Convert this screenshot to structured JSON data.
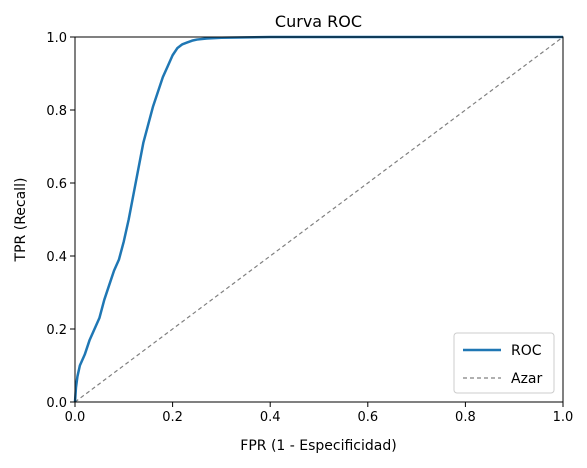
{
  "chart_data": {
    "type": "line",
    "title": "Curva ROC",
    "xlabel": "FPR (1 - Especificidad)",
    "ylabel": "TPR (Recall)",
    "xlim": [
      0,
      1
    ],
    "ylim": [
      0,
      1
    ],
    "xticks": [
      "0.0",
      "0.2",
      "0.4",
      "0.6",
      "0.8",
      "1.0"
    ],
    "yticks": [
      "0.0",
      "0.2",
      "0.4",
      "0.6",
      "0.8",
      "1.0"
    ],
    "grid": false,
    "legend_position": "lower-right",
    "series": [
      {
        "name": "ROC",
        "color": "#1f77b4",
        "style": "solid",
        "x": [
          0.0,
          0.002,
          0.005,
          0.01,
          0.02,
          0.03,
          0.04,
          0.05,
          0.06,
          0.07,
          0.08,
          0.09,
          0.1,
          0.11,
          0.12,
          0.13,
          0.14,
          0.15,
          0.16,
          0.17,
          0.18,
          0.19,
          0.2,
          0.21,
          0.22,
          0.23,
          0.24,
          0.25,
          0.27,
          0.3,
          0.35,
          0.4,
          0.5,
          0.6,
          0.8,
          1.0
        ],
        "y": [
          0.0,
          0.04,
          0.07,
          0.1,
          0.13,
          0.17,
          0.2,
          0.23,
          0.28,
          0.32,
          0.36,
          0.39,
          0.44,
          0.5,
          0.57,
          0.64,
          0.71,
          0.76,
          0.81,
          0.85,
          0.89,
          0.92,
          0.95,
          0.97,
          0.98,
          0.985,
          0.99,
          0.993,
          0.996,
          0.998,
          0.999,
          1.0,
          1.0,
          1.0,
          1.0,
          1.0
        ]
      },
      {
        "name": "Azar",
        "color": "#808080",
        "style": "dashed",
        "x": [
          0,
          1
        ],
        "y": [
          0,
          1
        ]
      }
    ]
  }
}
